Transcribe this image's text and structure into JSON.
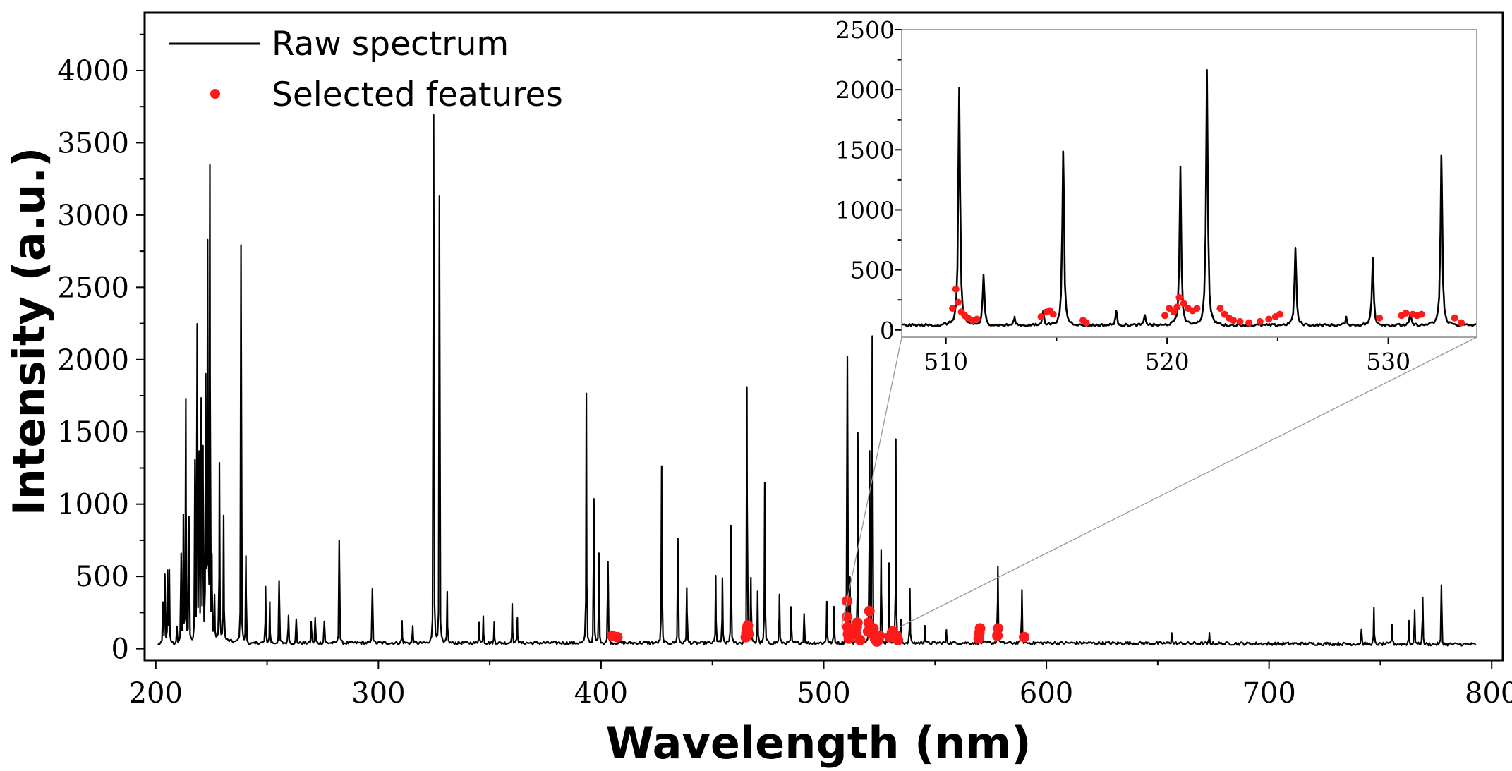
{
  "chart_data": [
    {
      "type": "line",
      "title": "",
      "xlabel": "Wavelength (nm)",
      "ylabel": "Intensity (a.u.)",
      "xlim": [
        195,
        805
      ],
      "ylim": [
        -80,
        4400
      ],
      "xticks": [
        200,
        300,
        400,
        500,
        600,
        700,
        800
      ],
      "yticks": [
        0,
        500,
        1000,
        1500,
        2000,
        2500,
        3000,
        3500,
        4000
      ],
      "legend_position": "top-left",
      "series": [
        {
          "name": "Raw spectrum",
          "color": "#000000",
          "peaks": [
            [
              203.2,
              280
            ],
            [
              204.1,
              470
            ],
            [
              205.3,
              490
            ],
            [
              206.1,
              510
            ],
            [
              209.5,
              120
            ],
            [
              211.4,
              610
            ],
            [
              212.4,
              870
            ],
            [
              213.5,
              1670
            ],
            [
              214.9,
              860
            ],
            [
              217.6,
              1220
            ],
            [
              218.6,
              2150
            ],
            [
              219.5,
              1250
            ],
            [
              220.4,
              1630
            ],
            [
              221.2,
              1290
            ],
            [
              222.4,
              1780
            ],
            [
              223.3,
              2700
            ],
            [
              224.3,
              3230
            ],
            [
              225.2,
              530
            ],
            [
              226.4,
              300
            ],
            [
              228.6,
              1210
            ],
            [
              230.5,
              870
            ],
            [
              238.3,
              2760
            ],
            [
              240.5,
              610
            ],
            [
              249.3,
              380
            ],
            [
              251.2,
              280
            ],
            [
              255.4,
              420
            ],
            [
              259.6,
              200
            ],
            [
              263.1,
              160
            ],
            [
              269.8,
              140
            ],
            [
              271.6,
              170
            ],
            [
              275.7,
              150
            ],
            [
              282.4,
              720
            ],
            [
              297.3,
              380
            ],
            [
              310.6,
              150
            ],
            [
              315.4,
              120
            ],
            [
              324.8,
              3660
            ],
            [
              327.4,
              3080
            ],
            [
              330.9,
              350
            ],
            [
              345.2,
              150
            ],
            [
              347.1,
              190
            ],
            [
              352.0,
              140
            ],
            [
              360.1,
              280
            ],
            [
              362.4,
              180
            ],
            [
              393.4,
              1730
            ],
            [
              396.8,
              990
            ],
            [
              399.1,
              610
            ],
            [
              403.1,
              560
            ],
            [
              427.2,
              1220
            ],
            [
              434.5,
              720
            ],
            [
              438.5,
              390
            ],
            [
              451.5,
              460
            ],
            [
              454.5,
              440
            ],
            [
              458.3,
              820
            ],
            [
              465.5,
              1770
            ],
            [
              467.3,
              460
            ],
            [
              470.3,
              360
            ],
            [
              473.5,
              1110
            ],
            [
              480.1,
              330
            ],
            [
              485.3,
              240
            ],
            [
              491.2,
              200
            ],
            [
              501.4,
              290
            ],
            [
              504.6,
              250
            ],
            [
              510.6,
              1970
            ],
            [
              511.8,
              430
            ],
            [
              515.3,
              1460
            ],
            [
              520.6,
              1310
            ],
            [
              521.8,
              2120
            ],
            [
              525.8,
              640
            ],
            [
              529.3,
              560
            ],
            [
              532.4,
              1410
            ],
            [
              534.7,
              150
            ],
            [
              538.7,
              380
            ],
            [
              545.4,
              120
            ],
            [
              555.1,
              80
            ],
            [
              570.1,
              100
            ],
            [
              578.2,
              520
            ],
            [
              589.0,
              360
            ],
            [
              656.3,
              80
            ],
            [
              673.2,
              70
            ],
            [
              741.5,
              110
            ],
            [
              747.1,
              250
            ],
            [
              755.2,
              140
            ],
            [
              762.8,
              160
            ],
            [
              765.4,
              240
            ],
            [
              769.0,
              330
            ],
            [
              777.4,
              400
            ]
          ]
        },
        {
          "name": "Selected features",
          "color": "#ff1a1a",
          "points": [
            [
              405.0,
              90
            ],
            [
              407.3,
              80
            ],
            [
              465.0,
              80
            ],
            [
              465.3,
              110
            ],
            [
              465.6,
              140
            ],
            [
              465.9,
              160
            ],
            [
              466.2,
              100
            ],
            [
              510.4,
              220
            ],
            [
              510.5,
              330
            ],
            [
              510.7,
              150
            ],
            [
              510.9,
              100
            ],
            [
              511.3,
              70
            ],
            [
              514.5,
              100
            ],
            [
              514.8,
              150
            ],
            [
              515.1,
              180
            ],
            [
              516.3,
              60
            ],
            [
              519.9,
              120
            ],
            [
              520.2,
              180
            ],
            [
              520.5,
              260
            ],
            [
              520.8,
              150
            ],
            [
              521.1,
              110
            ],
            [
              521.5,
              130
            ],
            [
              522.3,
              140
            ],
            [
              522.6,
              100
            ],
            [
              523.0,
              70
            ],
            [
              523.4,
              60
            ],
            [
              523.9,
              50
            ],
            [
              524.6,
              60
            ],
            [
              525.1,
              90
            ],
            [
              529.6,
              80
            ],
            [
              530.6,
              110
            ],
            [
              531.0,
              120
            ],
            [
              531.5,
              100
            ],
            [
              532.9,
              90
            ],
            [
              533.3,
              60
            ],
            [
              569.6,
              70
            ],
            [
              569.9,
              110
            ],
            [
              570.2,
              140
            ],
            [
              578.0,
              90
            ],
            [
              578.3,
              140
            ],
            [
              590.0,
              80
            ]
          ]
        }
      ]
    },
    {
      "type": "line",
      "title": "",
      "xlabel": "",
      "ylabel": "",
      "xlim": [
        508,
        534
      ],
      "ylim": [
        -60,
        2500
      ],
      "xticks": [
        510,
        520,
        530
      ],
      "yticks": [
        0,
        500,
        1000,
        1500,
        2000,
        2500
      ],
      "series": [
        {
          "name": "Raw spectrum",
          "color": "#000000",
          "peaks": [
            [
              510.6,
              1970
            ],
            [
              511.7,
              410
            ],
            [
              513.1,
              60
            ],
            [
              514.4,
              120
            ],
            [
              515.3,
              1450
            ],
            [
              517.7,
              110
            ],
            [
              519.0,
              80
            ],
            [
              520.6,
              1310
            ],
            [
              521.8,
              2120
            ],
            [
              525.8,
              640
            ],
            [
              528.1,
              60
            ],
            [
              529.3,
              560
            ],
            [
              531.0,
              90
            ],
            [
              532.4,
              1410
            ]
          ]
        },
        {
          "name": "Selected features",
          "color": "#ff1a1a",
          "points": [
            [
              510.3,
              180
            ],
            [
              510.45,
              340
            ],
            [
              510.55,
              230
            ],
            [
              510.7,
              150
            ],
            [
              510.85,
              120
            ],
            [
              511.0,
              100
            ],
            [
              511.2,
              80
            ],
            [
              511.4,
              90
            ],
            [
              514.3,
              110
            ],
            [
              514.55,
              150
            ],
            [
              514.7,
              160
            ],
            [
              514.85,
              130
            ],
            [
              516.2,
              80
            ],
            [
              516.35,
              60
            ],
            [
              519.9,
              120
            ],
            [
              520.1,
              180
            ],
            [
              520.3,
              150
            ],
            [
              520.45,
              190
            ],
            [
              520.55,
              270
            ],
            [
              520.75,
              220
            ],
            [
              520.95,
              180
            ],
            [
              521.15,
              160
            ],
            [
              521.35,
              180
            ],
            [
              522.4,
              180
            ],
            [
              522.6,
              130
            ],
            [
              522.8,
              100
            ],
            [
              523.0,
              80
            ],
            [
              523.3,
              70
            ],
            [
              523.7,
              60
            ],
            [
              524.2,
              70
            ],
            [
              524.6,
              90
            ],
            [
              524.9,
              110
            ],
            [
              525.1,
              130
            ],
            [
              529.6,
              100
            ],
            [
              530.6,
              120
            ],
            [
              530.8,
              140
            ],
            [
              531.1,
              130
            ],
            [
              531.3,
              120
            ],
            [
              531.5,
              130
            ],
            [
              533.0,
              100
            ],
            [
              533.3,
              60
            ]
          ]
        }
      ]
    }
  ]
}
